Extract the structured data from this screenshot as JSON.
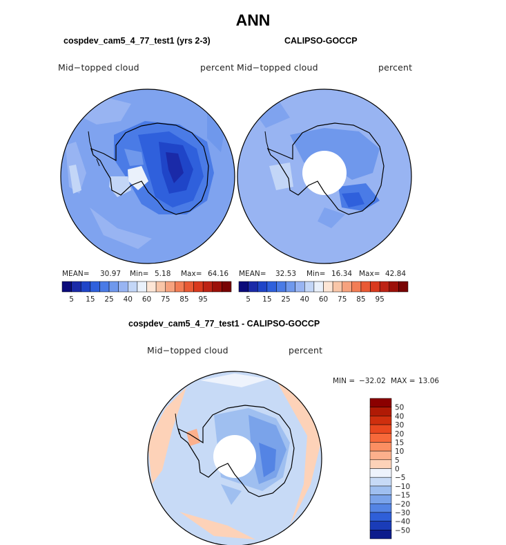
{
  "title": "ANN",
  "panels": {
    "left": {
      "title": "cospdev_cam5_4_77_test1 (yrs 2-3)",
      "variable": "Mid−topped cloud",
      "units": "percent",
      "mean_label": "MEAN=",
      "mean_value": "30.97",
      "min_label": "Min=",
      "min_value": "5.18",
      "max_label": "Max=",
      "max_value": "64.16"
    },
    "right": {
      "title": "CALIPSO-GOCCP",
      "variable": "Mid−topped cloud",
      "units": "percent",
      "mean_label": "MEAN=",
      "mean_value": "32.53",
      "min_label": "Min=",
      "min_value": "16.34",
      "max_label": "Max=",
      "max_value": "42.84"
    },
    "diff": {
      "title": "cospdev_cam5_4_77_test1 - CALIPSO-GOCCP",
      "variable": "Mid−topped cloud",
      "units": "percent",
      "min_label": "MIN =",
      "min_value": "−32.02",
      "max_label": "MAX =",
      "max_value": "13.06"
    }
  },
  "chart_data": [
    {
      "type": "heatmap",
      "projection": "south-polar-stereographic",
      "title": "cospdev_cam5_4_77_test1 (yrs 2-3)",
      "variable": "Mid-topped cloud",
      "units": "percent",
      "mean": 30.97,
      "min": 5.18,
      "max": 64.16,
      "levels": [
        5,
        10,
        15,
        20,
        25,
        30,
        35,
        40,
        50,
        60,
        65,
        70,
        75,
        80,
        85,
        90,
        95
      ],
      "colorbar_tick_labels": [
        "5",
        "15",
        "25",
        "40",
        "60",
        "75",
        "85",
        "95"
      ],
      "colors": [
        "#0b0b7a",
        "#1a2aa8",
        "#1f45c8",
        "#2f60dc",
        "#4a7be6",
        "#6f98ec",
        "#98b4f2",
        "#c3d6f7",
        "#eaf1fb",
        "#fde6d6",
        "#f9c6a8",
        "#f6a27e",
        "#f27d55",
        "#e95a35",
        "#d93a1e",
        "#bd2314",
        "#9c1009",
        "#780404"
      ]
    },
    {
      "type": "heatmap",
      "projection": "south-polar-stereographic",
      "title": "CALIPSO-GOCCP",
      "variable": "Mid-topped cloud",
      "units": "percent",
      "mean": 32.53,
      "min": 16.34,
      "max": 42.84,
      "levels": [
        5,
        10,
        15,
        20,
        25,
        30,
        35,
        40,
        50,
        60,
        65,
        70,
        75,
        80,
        85,
        90,
        95
      ],
      "colorbar_tick_labels": [
        "5",
        "15",
        "25",
        "40",
        "60",
        "75",
        "85",
        "95"
      ]
    },
    {
      "type": "heatmap",
      "projection": "south-polar-stereographic",
      "title": "cospdev_cam5_4_77_test1 - CALIPSO-GOCCP",
      "variable": "Mid-topped cloud",
      "units": "percent",
      "min": -32.02,
      "max": 13.06,
      "levels": [
        -50,
        -40,
        -30,
        -20,
        -15,
        -10,
        -5,
        0,
        5,
        10,
        15,
        20,
        30,
        40,
        50
      ],
      "colorbar_tick_labels": [
        "50",
        "40",
        "30",
        "20",
        "15",
        "10",
        "5",
        "0",
        "−5",
        "−10",
        "−15",
        "−20",
        "−30",
        "−40",
        "−50"
      ],
      "colors": [
        "#8b0000",
        "#b01a05",
        "#cf2f0e",
        "#e9481f",
        "#f7693a",
        "#fb8f62",
        "#fcb08c",
        "#fdd2b8",
        "#eef3fc",
        "#c7daf6",
        "#9fbff0",
        "#7aa3ea",
        "#5484e4",
        "#2f5fd8",
        "#1a3cb8",
        "#0c1c8c"
      ]
    }
  ]
}
